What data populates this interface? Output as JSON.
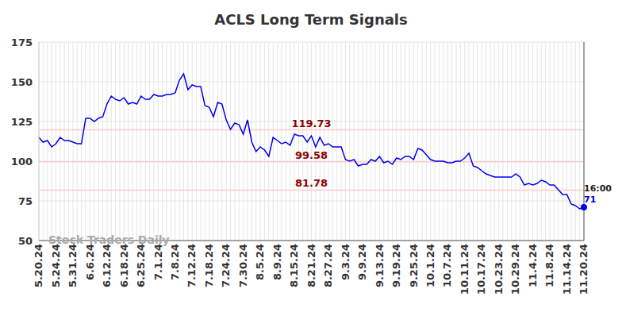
{
  "chart_data": {
    "type": "line",
    "title": "ACLS Long Term Signals",
    "watermark": "Stock Traders Daily",
    "last_label": "16:00",
    "color": "#0000ee",
    "marker": "circle",
    "grid": true,
    "ylim": [
      50,
      175
    ],
    "yticks": [
      50,
      75,
      100,
      125,
      150,
      175
    ],
    "reference_lines": [
      119.73,
      99.58,
      81.78
    ],
    "reference_color": "#ffcccc",
    "reference_label_color": "#8b0000",
    "categories": [
      "5.20.24",
      null,
      null,
      null,
      "5.24.24",
      null,
      null,
      null,
      "5.31.24",
      null,
      null,
      null,
      "6.6.24",
      null,
      null,
      null,
      "6.12.24",
      null,
      null,
      null,
      "6.18.24",
      null,
      null,
      null,
      "6.25.24",
      null,
      null,
      null,
      "7.1.24",
      null,
      null,
      null,
      "7.8.24",
      null,
      null,
      null,
      "7.12.24",
      null,
      null,
      null,
      "7.18.24",
      null,
      null,
      null,
      "7.24.24",
      null,
      null,
      null,
      "7.30.24",
      null,
      null,
      null,
      "8.5.24",
      null,
      null,
      null,
      "8.9.24",
      null,
      null,
      null,
      "8.15.24",
      null,
      null,
      null,
      "8.21.24",
      null,
      null,
      null,
      "8.27.24",
      null,
      null,
      null,
      "9.3.24",
      null,
      null,
      null,
      "9.9.24",
      null,
      null,
      null,
      "9.13.24",
      null,
      null,
      null,
      "9.19.24",
      null,
      null,
      null,
      "9.25.24",
      null,
      null,
      null,
      "10.1.24",
      null,
      null,
      null,
      "10.7.24",
      null,
      null,
      null,
      "10.11.24",
      null,
      null,
      null,
      "10.17.24",
      null,
      null,
      null,
      "10.23.24",
      null,
      null,
      null,
      "10.29.24",
      null,
      null,
      null,
      "11.4.24",
      null,
      null,
      null,
      "11.8.24",
      null,
      null,
      null,
      "11.14.24",
      null,
      null,
      null,
      "11.20.24"
    ],
    "values": [
      115,
      112,
      113,
      109,
      111,
      115,
      113,
      113,
      112,
      111,
      111,
      127,
      127,
      125,
      127,
      128,
      136,
      141,
      139,
      138,
      140,
      136,
      137,
      136,
      141,
      139,
      139,
      142,
      141,
      141,
      142,
      142,
      143,
      151,
      155,
      145,
      148,
      147,
      147,
      135,
      134,
      128,
      137,
      136,
      126,
      120,
      124,
      123,
      117,
      126,
      112,
      106,
      109,
      107,
      103,
      115,
      113,
      111,
      112,
      110,
      117,
      116,
      116,
      112,
      116,
      109,
      115,
      110,
      111,
      109,
      109,
      109,
      101,
      100,
      101,
      97,
      98,
      98,
      101,
      100,
      103,
      99,
      100,
      98,
      102,
      101,
      103,
      103,
      101,
      108,
      107,
      104,
      101,
      100,
      100,
      100,
      99,
      99,
      100,
      100,
      102,
      105,
      97,
      96,
      94,
      92,
      91,
      90,
      90,
      90,
      90,
      90,
      92,
      90,
      85,
      86,
      85,
      86,
      88,
      87,
      85,
      85,
      82,
      79,
      79,
      73,
      72,
      70,
      71
    ]
  }
}
